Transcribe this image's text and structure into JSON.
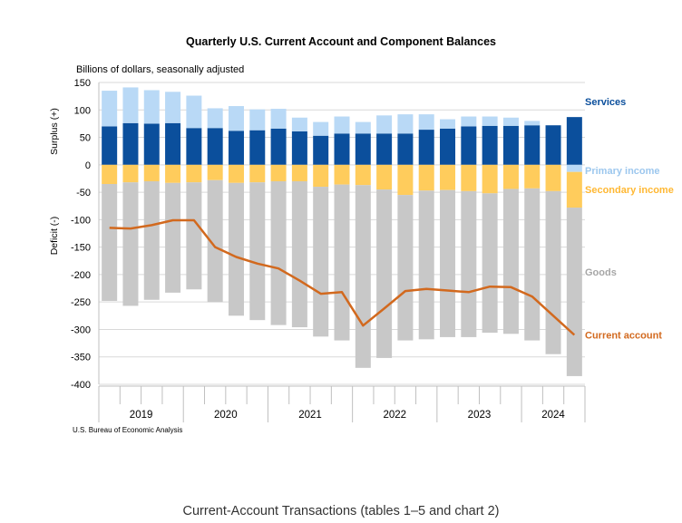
{
  "chart_data": {
    "type": "bar",
    "title": "Quarterly U.S. Current Account and Component Balances",
    "units": "Billions of dollars, seasonally adjusted",
    "ylabel_positive": "Surplus (+)",
    "ylabel_negative": "Deficit (-)",
    "ylim": [
      -400,
      150
    ],
    "yticks": [
      150,
      100,
      50,
      0,
      -50,
      -100,
      -150,
      -200,
      -250,
      -300,
      -350,
      -400
    ],
    "years": [
      "2019",
      "2020",
      "2021",
      "2022",
      "2023",
      "2024"
    ],
    "categories": [
      "2019 Q1",
      "2019 Q2",
      "2019 Q3",
      "2019 Q4",
      "2020 Q1",
      "2020 Q2",
      "2020 Q3",
      "2020 Q4",
      "2021 Q1",
      "2021 Q2",
      "2021 Q3",
      "2021 Q4",
      "2022 Q1",
      "2022 Q2",
      "2022 Q3",
      "2022 Q4",
      "2023 Q1",
      "2023 Q2",
      "2023 Q3",
      "2023 Q4",
      "2024 Q1",
      "2024 Q2",
      "2024 Q3"
    ],
    "series": [
      {
        "name": "Services",
        "kind": "bar",
        "color": "#0b4f9c",
        "values": [
          70,
          76,
          75,
          76,
          67,
          67,
          62,
          63,
          66,
          61,
          53,
          57,
          57,
          57,
          57,
          64,
          66,
          70,
          71,
          71,
          72,
          72,
          87
        ]
      },
      {
        "name": "Primary income",
        "kind": "bar",
        "color": "#b9d9f6",
        "values": [
          65,
          65,
          61,
          57,
          59,
          36,
          45,
          38,
          36,
          25,
          25,
          31,
          21,
          33,
          35,
          28,
          17,
          18,
          17,
          15,
          8,
          0,
          -13
        ]
      },
      {
        "name": "Secondary income",
        "kind": "bar",
        "color": "#ffcc5c",
        "values": [
          -35,
          -32,
          -30,
          -33,
          -32,
          -28,
          -33,
          -32,
          -30,
          -30,
          -40,
          -36,
          -37,
          -45,
          -55,
          -47,
          -46,
          -48,
          -52,
          -44,
          -43,
          -48,
          -65
        ]
      },
      {
        "name": "Goods",
        "kind": "bar",
        "color": "#c8c8c8",
        "values": [
          -213,
          -225,
          -216,
          -200,
          -195,
          -222,
          -242,
          -251,
          -262,
          -266,
          -273,
          -284,
          -333,
          -307,
          -265,
          -271,
          -268,
          -266,
          -254,
          -264,
          -277,
          -297,
          -307
        ]
      },
      {
        "name": "Current account",
        "kind": "line",
        "color": "#d2691e",
        "values": [
          -115,
          -116,
          -110,
          -101,
          -101,
          -150,
          -168,
          -180,
          -189,
          -211,
          -235,
          -232,
          -293,
          -262,
          -230,
          -226,
          -229,
          -232,
          -222,
          -223,
          -240,
          -275,
          -310
        ]
      }
    ],
    "source": "U.S. Bureau of Economic Analysis"
  },
  "footer_heading": "Current-Account Transactions (tables 1–5 and chart 2)"
}
